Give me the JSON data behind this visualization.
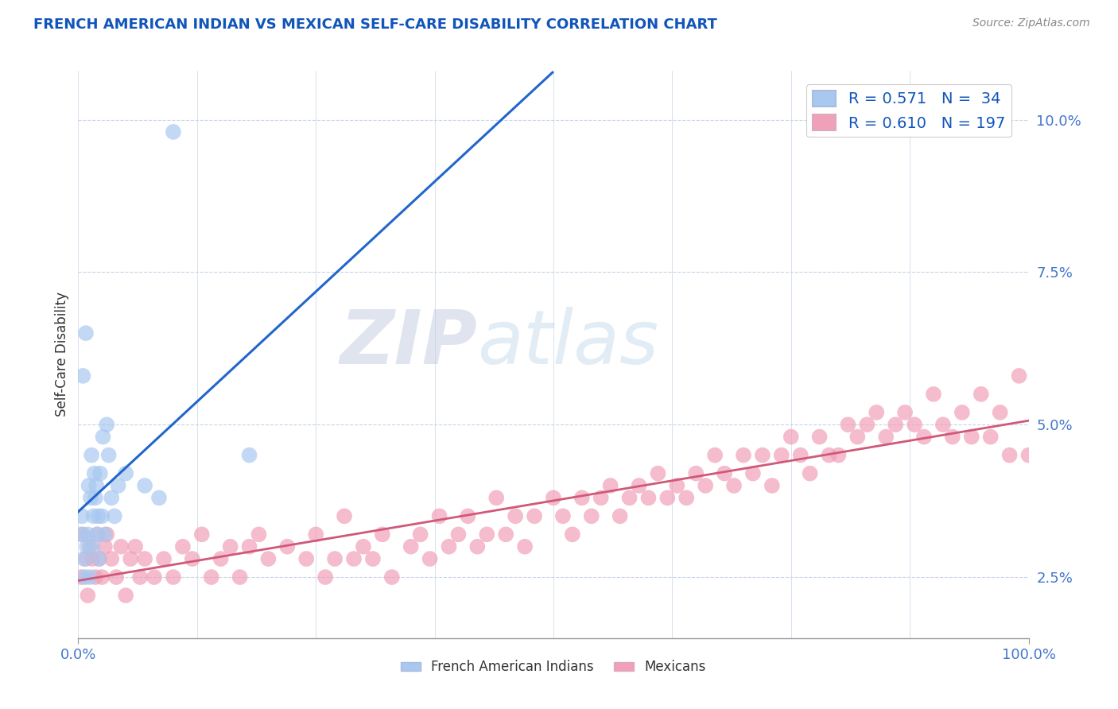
{
  "title": "FRENCH AMERICAN INDIAN VS MEXICAN SELF-CARE DISABILITY CORRELATION CHART",
  "source": "Source: ZipAtlas.com",
  "ylabel": "Self-Care Disability",
  "watermark_zip": "ZIP",
  "watermark_atlas": "atlas",
  "blue_R": 0.571,
  "blue_N": 34,
  "pink_R": 0.61,
  "pink_N": 197,
  "blue_color": "#a8c8f0",
  "blue_line_color": "#2266cc",
  "pink_color": "#f0a0b8",
  "pink_line_color": "#d05878",
  "background_color": "#ffffff",
  "grid_color": "#c8d4e8",
  "xlim": [
    0,
    100
  ],
  "ylim_bottom": 1.5,
  "ylim_top": 10.8,
  "yticks": [
    2.5,
    5.0,
    7.5,
    10.0
  ],
  "ytick_labels": [
    "2.5%",
    "5.0%",
    "7.5%",
    "10.0%"
  ],
  "blue_scatter_x": [
    0.3,
    0.4,
    0.5,
    0.6,
    0.7,
    0.8,
    0.9,
    1.0,
    1.1,
    1.2,
    1.3,
    1.4,
    1.5,
    1.6,
    1.7,
    1.8,
    1.9,
    2.0,
    2.1,
    2.2,
    2.3,
    2.5,
    2.6,
    2.8,
    3.0,
    3.2,
    3.5,
    3.8,
    4.2,
    5.0,
    7.0,
    8.5,
    10.0,
    18.0
  ],
  "blue_scatter_y": [
    3.2,
    3.5,
    5.8,
    2.8,
    2.5,
    6.5,
    3.0,
    3.2,
    4.0,
    2.5,
    3.8,
    4.5,
    3.0,
    3.5,
    4.2,
    3.8,
    4.0,
    3.2,
    3.5,
    2.8,
    4.2,
    3.5,
    4.8,
    3.2,
    5.0,
    4.5,
    3.8,
    3.5,
    4.0,
    4.2,
    4.0,
    3.8,
    9.8,
    4.5
  ],
  "pink_scatter_x": [
    0.3,
    0.5,
    0.8,
    1.0,
    1.2,
    1.5,
    1.8,
    2.0,
    2.2,
    2.5,
    2.8,
    3.0,
    3.5,
    4.0,
    4.5,
    5.0,
    5.5,
    6.0,
    6.5,
    7.0,
    8.0,
    9.0,
    10.0,
    11.0,
    12.0,
    13.0,
    14.0,
    15.0,
    16.0,
    17.0,
    18.0,
    19.0,
    20.0,
    22.0,
    24.0,
    25.0,
    26.0,
    27.0,
    28.0,
    29.0,
    30.0,
    31.0,
    32.0,
    33.0,
    35.0,
    36.0,
    37.0,
    38.0,
    39.0,
    40.0,
    41.0,
    42.0,
    43.0,
    44.0,
    45.0,
    46.0,
    47.0,
    48.0,
    50.0,
    51.0,
    52.0,
    53.0,
    54.0,
    55.0,
    56.0,
    57.0,
    58.0,
    59.0,
    60.0,
    61.0,
    62.0,
    63.0,
    64.0,
    65.0,
    66.0,
    67.0,
    68.0,
    69.0,
    70.0,
    71.0,
    72.0,
    73.0,
    74.0,
    75.0,
    76.0,
    77.0,
    78.0,
    79.0,
    80.0,
    81.0,
    82.0,
    83.0,
    84.0,
    85.0,
    86.0,
    87.0,
    88.0,
    89.0,
    90.0,
    91.0,
    92.0,
    93.0,
    94.0,
    95.0,
    96.0,
    97.0,
    98.0,
    99.0,
    100.0
  ],
  "pink_scatter_y": [
    2.5,
    3.2,
    2.8,
    2.2,
    3.0,
    2.8,
    2.5,
    3.2,
    2.8,
    2.5,
    3.0,
    3.2,
    2.8,
    2.5,
    3.0,
    2.2,
    2.8,
    3.0,
    2.5,
    2.8,
    2.5,
    2.8,
    2.5,
    3.0,
    2.8,
    3.2,
    2.5,
    2.8,
    3.0,
    2.5,
    3.0,
    3.2,
    2.8,
    3.0,
    2.8,
    3.2,
    2.5,
    2.8,
    3.5,
    2.8,
    3.0,
    2.8,
    3.2,
    2.5,
    3.0,
    3.2,
    2.8,
    3.5,
    3.0,
    3.2,
    3.5,
    3.0,
    3.2,
    3.8,
    3.2,
    3.5,
    3.0,
    3.5,
    3.8,
    3.5,
    3.2,
    3.8,
    3.5,
    3.8,
    4.0,
    3.5,
    3.8,
    4.0,
    3.8,
    4.2,
    3.8,
    4.0,
    3.8,
    4.2,
    4.0,
    4.5,
    4.2,
    4.0,
    4.5,
    4.2,
    4.5,
    4.0,
    4.5,
    4.8,
    4.5,
    4.2,
    4.8,
    4.5,
    4.5,
    5.0,
    4.8,
    5.0,
    5.2,
    4.8,
    5.0,
    5.2,
    5.0,
    4.8,
    5.5,
    5.0,
    4.8,
    5.2,
    4.8,
    5.5,
    4.8,
    5.2,
    4.5,
    5.8,
    4.5
  ]
}
